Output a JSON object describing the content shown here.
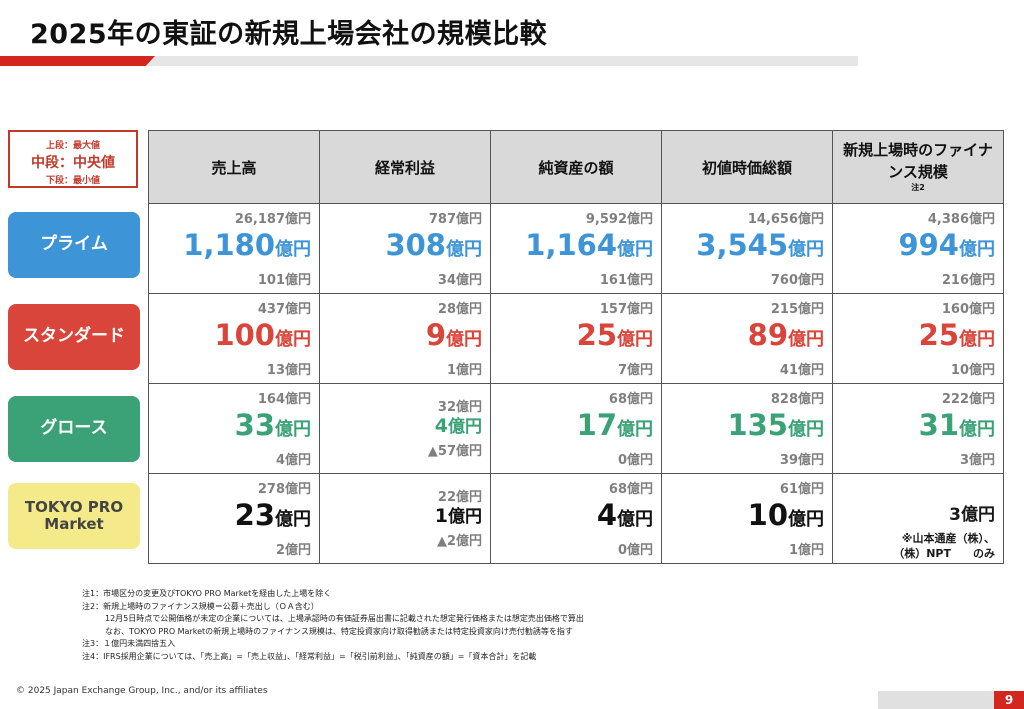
{
  "title": "2025年の東証の新規上場会社の規模比較",
  "legend": {
    "upper": "上段：最大値",
    "middle": "中段：中央値",
    "lower": "下段：最小値"
  },
  "columns": [
    {
      "label": "売上高",
      "sup": ""
    },
    {
      "label": "経常利益",
      "sup": ""
    },
    {
      "label": "純資産の額",
      "sup": ""
    },
    {
      "label": "初値時価総額",
      "sup": ""
    },
    {
      "label": "新規上場時のファイナンス規模",
      "sup": "注2"
    }
  ],
  "rows": {
    "prime": {
      "label": "プライム",
      "cells": [
        {
          "max": "26,187億円",
          "med": "1,180",
          "unit": "億円",
          "min": "101億円"
        },
        {
          "max": "787億円",
          "med": "308",
          "unit": "億円",
          "min": "34億円"
        },
        {
          "max": "9,592億円",
          "med": "1,164",
          "unit": "億円",
          "min": "161億円"
        },
        {
          "max": "14,656億円",
          "med": "3,545",
          "unit": "億円",
          "min": "760億円"
        },
        {
          "max": "4,386億円",
          "med": "994",
          "unit": "億円",
          "min": "216億円"
        }
      ]
    },
    "standard": {
      "label": "スタンダード",
      "cells": [
        {
          "max": "437億円",
          "med": "100",
          "unit": "億円",
          "min": "13億円"
        },
        {
          "max": "28億円",
          "med": "9",
          "unit": "億円",
          "min": "1億円"
        },
        {
          "max": "157億円",
          "med": "25",
          "unit": "億円",
          "min": "7億円"
        },
        {
          "max": "215億円",
          "med": "89",
          "unit": "億円",
          "min": "41億円"
        },
        {
          "max": "160億円",
          "med": "25",
          "unit": "億円",
          "min": "10億円"
        }
      ]
    },
    "growth": {
      "label": "グロース",
      "cells": [
        {
          "max": "164億円",
          "med": "33",
          "unit": "億円",
          "min": "4億円"
        },
        {
          "max": "32億円",
          "med": "4",
          "unit": "億円",
          "min": "▲57億円"
        },
        {
          "max": "68億円",
          "med": "17",
          "unit": "億円",
          "min": "0億円"
        },
        {
          "max": "828億円",
          "med": "135",
          "unit": "億円",
          "min": "39億円"
        },
        {
          "max": "222億円",
          "med": "31",
          "unit": "億円",
          "min": "3億円"
        }
      ]
    },
    "pro": {
      "label_line1": "TOKYO PRO",
      "label_line2": "Market",
      "cells": [
        {
          "max": "278億円",
          "med": "23",
          "unit": "億円",
          "min": "2億円"
        },
        {
          "max": "22億円",
          "med": "1",
          "unit": "億円",
          "min": "▲2億円"
        },
        {
          "max": "68億円",
          "med": "4",
          "unit": "億円",
          "min": "0億円"
        },
        {
          "max": "61億円",
          "med": "10",
          "unit": "億円",
          "min": "1億円"
        },
        {
          "value": "3億円",
          "note1": "※山本通産（株）、",
          "note2": "（株）NPT　　のみ"
        }
      ]
    }
  },
  "notes": [
    "注1：市場区分の変更及びTOKYO PRO Marketを経由した上場を除く",
    "注2：新規上場時のファイナンス規模＝公募＋売出し（ＯＡ含む）",
    "12月5日時点で公開価格が未定の企業については、上場承認時の有価証券届出書に記載された想定発行価格または想定売出価格で算出",
    "なお、TOKYO PRO Marketの新規上場時のファイナンス規模は、特定投資家向け取得勧誘または特定投資家向け売付勧誘等を指す",
    "注3：１億円未満四捨五入",
    "注4：IFRS採用企業については、「売上高」=「売上収益」、「経常利益」=「税引前利益」、「純資産の額」=「資本合計」を記載"
  ],
  "copyright": "© 2025 Japan Exchange Group, Inc., and/or its affiliates",
  "page_number": "9",
  "colors": {
    "prime": "#3d94d6",
    "standard": "#d9453a",
    "growth": "#3aa276",
    "pro": "#f4ea8a",
    "accent": "#d2261e"
  }
}
